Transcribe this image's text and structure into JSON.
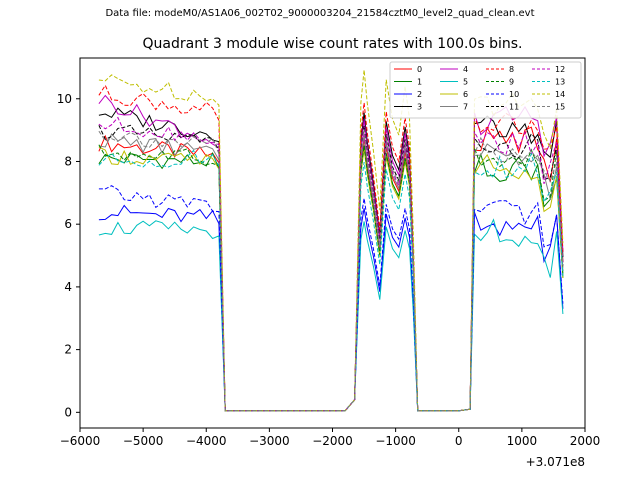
{
  "figure": {
    "suptitle": "Data file: modeM0/AS1A06_002T02_9000003204_21584cztM0_level2_quad_clean.evt"
  },
  "chart_data": {
    "type": "line",
    "title": "Quadrant 3 module wise count rates with 100.0s bins.",
    "xlabel": "",
    "ylabel": "",
    "x_offset_label": "+3.071e8",
    "xlim": [
      -6000,
      2000
    ],
    "ylim": [
      -0.5,
      11.3
    ],
    "xticks": [
      -6000,
      -5000,
      -4000,
      -3000,
      -2000,
      -1000,
      0,
      1000,
      2000
    ],
    "xtick_labels": [
      "−6000",
      "−5000",
      "−4000",
      "−3000",
      "−2000",
      "−1000",
      "0",
      "1000",
      "2000"
    ],
    "yticks": [
      0,
      2,
      4,
      6,
      8,
      10
    ],
    "ytick_labels": [
      "0",
      "2",
      "4",
      "6",
      "8",
      "10"
    ],
    "legend_position": "top-right",
    "segments": [
      {
        "start": -5700,
        "end": -3800
      },
      {
        "start": -1500,
        "end": -800
      },
      {
        "start": 200,
        "end": 1700
      }
    ],
    "series": [
      {
        "name": "0",
        "color": "#ff0000",
        "dash": false,
        "level": 8.2,
        "start": 8.6,
        "seg2": 8.3,
        "seg3": 8.7
      },
      {
        "name": "1",
        "color": "#008000",
        "dash": false,
        "level": 8.0,
        "start": 8.1,
        "seg2": 8.1,
        "seg3": 7.8
      },
      {
        "name": "2",
        "color": "#0000ff",
        "dash": false,
        "level": 6.2,
        "start": 6.4,
        "seg2": 6.2,
        "seg3": 6.0
      },
      {
        "name": "3",
        "color": "#000000",
        "dash": false,
        "level": 8.9,
        "start": 9.6,
        "seg2": 9.1,
        "seg3": 9.0
      },
      {
        "name": "4",
        "color": "#bf00bf",
        "dash": false,
        "level": 8.7,
        "start": 10.0,
        "seg2": 8.9,
        "seg3": 9.3
      },
      {
        "name": "5",
        "color": "#00bfbf",
        "dash": false,
        "level": 5.8,
        "start": 5.9,
        "seg2": 5.8,
        "seg3": 5.7
      },
      {
        "name": "6",
        "color": "#bfbf00",
        "dash": false,
        "level": 8.0,
        "start": 8.2,
        "seg2": 8.0,
        "seg3": 7.8
      },
      {
        "name": "7",
        "color": "#808080",
        "dash": false,
        "level": 8.3,
        "start": 8.7,
        "seg2": 8.4,
        "seg3": 8.2
      },
      {
        "name": "8",
        "color": "#ff0000",
        "dash": true,
        "level": 9.6,
        "start": 10.2,
        "seg2": 9.4,
        "seg3": 9.3
      },
      {
        "name": "9",
        "color": "#008000",
        "dash": true,
        "level": 8.1,
        "start": 8.3,
        "seg2": 8.1,
        "seg3": 8.0
      },
      {
        "name": "10",
        "color": "#0000ff",
        "dash": true,
        "level": 6.6,
        "start": 7.0,
        "seg2": 6.5,
        "seg3": 6.3
      },
      {
        "name": "11",
        "color": "#000000",
        "dash": true,
        "level": 8.6,
        "start": 9.0,
        "seg2": 8.7,
        "seg3": 8.5
      },
      {
        "name": "12",
        "color": "#bf00bf",
        "dash": true,
        "level": 8.8,
        "start": 9.2,
        "seg2": 8.5,
        "seg3": 8.6
      },
      {
        "name": "13",
        "color": "#00bfbf",
        "dash": true,
        "level": 8.1,
        "start": 8.0,
        "seg2": 7.6,
        "seg3": 7.9
      },
      {
        "name": "14",
        "color": "#bfbf00",
        "dash": true,
        "level": 10.1,
        "start": 10.6,
        "seg2": 10.4,
        "seg3": 9.8
      },
      {
        "name": "15",
        "color": "#808080",
        "dash": true,
        "level": 8.5,
        "start": 8.9,
        "seg2": 8.6,
        "seg3": 8.4
      }
    ]
  }
}
